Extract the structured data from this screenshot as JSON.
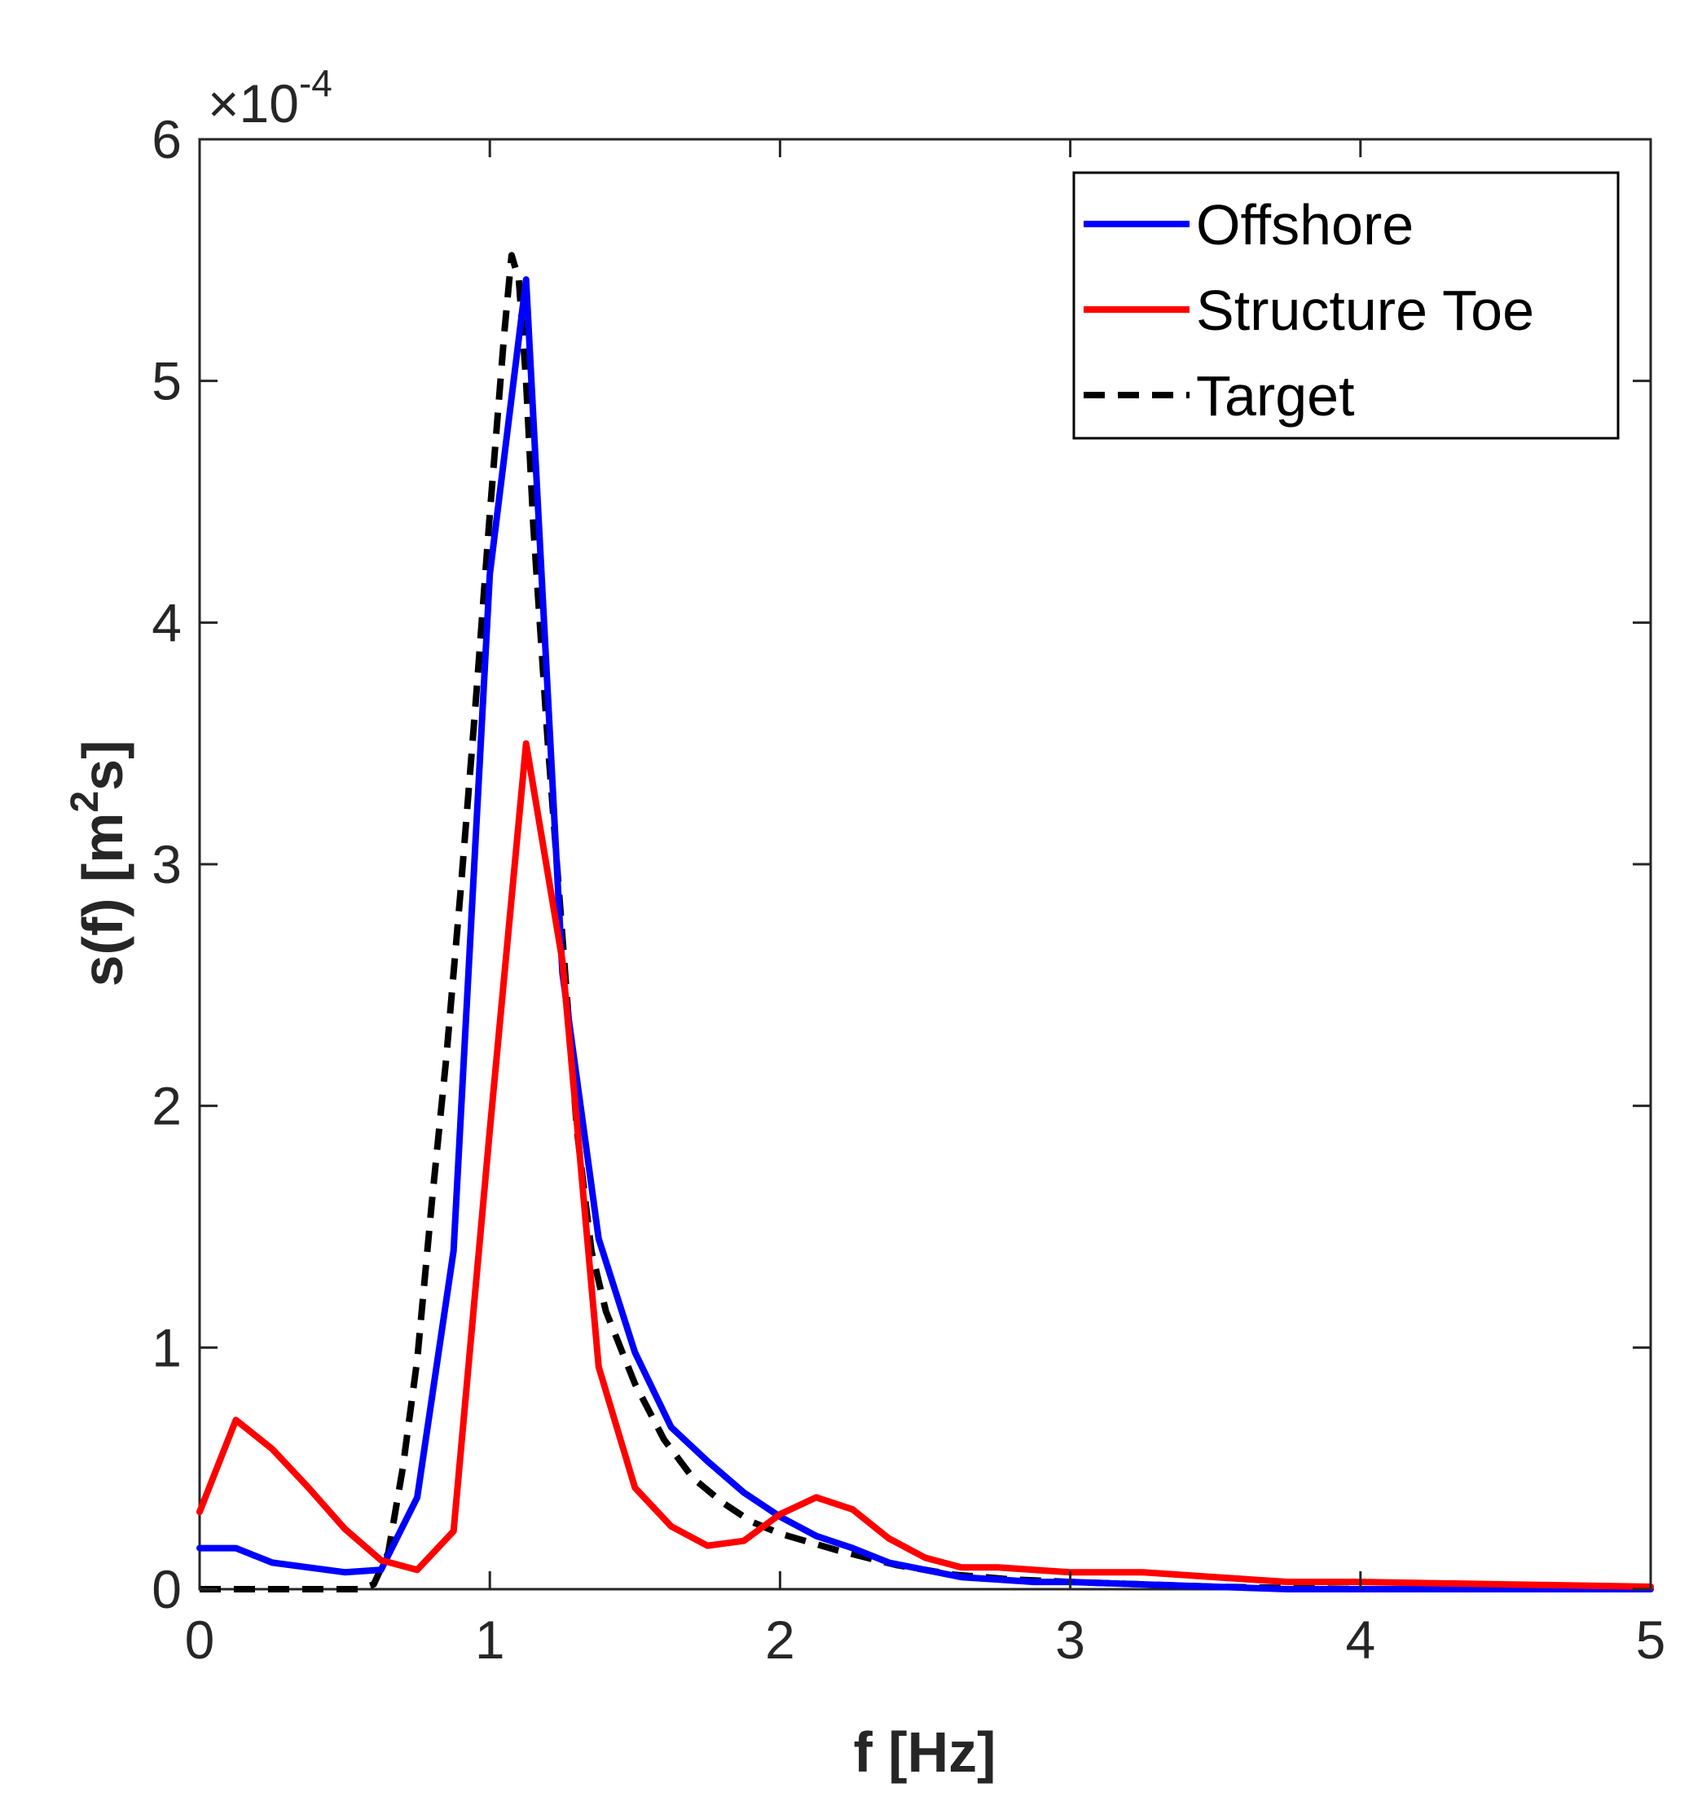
{
  "chart_data": {
    "type": "line",
    "title": "",
    "xlabel": "f [Hz]",
    "ylabel_main": "s(f) [m",
    "ylabel_sup": "2",
    "ylabel_tail": "s]",
    "xlim": [
      0,
      5
    ],
    "ylim": [
      0,
      6
    ],
    "y_scale_base": "×10",
    "y_scale_exp": "-4",
    "xticks": [
      0,
      1,
      2,
      3,
      4,
      5
    ],
    "yticks": [
      0,
      1,
      2,
      3,
      4,
      5,
      6
    ],
    "grid": false,
    "legend_position": "top-right",
    "series": [
      {
        "name": "Offshore",
        "color": "#0000FF",
        "style": "solid",
        "points": [
          [
            0,
            0.17
          ],
          [
            0.125,
            0.17
          ],
          [
            0.25,
            0.11
          ],
          [
            0.375,
            0.09
          ],
          [
            0.5,
            0.07
          ],
          [
            0.625,
            0.08
          ],
          [
            0.75,
            0.38
          ],
          [
            0.875,
            1.4
          ],
          [
            1.0,
            4.2
          ],
          [
            1.125,
            5.42
          ],
          [
            1.25,
            2.55
          ],
          [
            1.375,
            1.45
          ],
          [
            1.5,
            0.98
          ],
          [
            1.625,
            0.67
          ],
          [
            1.75,
            0.53
          ],
          [
            1.875,
            0.4
          ],
          [
            2.0,
            0.3
          ],
          [
            2.125,
            0.22
          ],
          [
            2.25,
            0.17
          ],
          [
            2.375,
            0.11
          ],
          [
            2.5,
            0.08
          ],
          [
            2.625,
            0.05
          ],
          [
            2.75,
            0.04
          ],
          [
            2.875,
            0.03
          ],
          [
            3.0,
            0.03
          ],
          [
            3.25,
            0.02
          ],
          [
            3.5,
            0.01
          ],
          [
            3.75,
            0.0
          ],
          [
            4.0,
            0.0
          ],
          [
            4.5,
            0.0
          ],
          [
            5.0,
            0.0
          ]
        ]
      },
      {
        "name": "Structure Toe",
        "color": "#FF0000",
        "style": "solid",
        "points": [
          [
            0,
            0.32
          ],
          [
            0.125,
            0.7
          ],
          [
            0.25,
            0.58
          ],
          [
            0.375,
            0.42
          ],
          [
            0.5,
            0.25
          ],
          [
            0.625,
            0.12
          ],
          [
            0.75,
            0.08
          ],
          [
            0.875,
            0.24
          ],
          [
            1.0,
            1.9
          ],
          [
            1.125,
            3.5
          ],
          [
            1.25,
            2.6
          ],
          [
            1.375,
            0.92
          ],
          [
            1.5,
            0.42
          ],
          [
            1.625,
            0.26
          ],
          [
            1.75,
            0.18
          ],
          [
            1.875,
            0.2
          ],
          [
            2.0,
            0.31
          ],
          [
            2.125,
            0.38
          ],
          [
            2.25,
            0.33
          ],
          [
            2.375,
            0.21
          ],
          [
            2.5,
            0.13
          ],
          [
            2.625,
            0.09
          ],
          [
            2.75,
            0.09
          ],
          [
            2.875,
            0.08
          ],
          [
            3.0,
            0.07
          ],
          [
            3.25,
            0.07
          ],
          [
            3.5,
            0.05
          ],
          [
            3.75,
            0.03
          ],
          [
            4.0,
            0.03
          ],
          [
            4.5,
            0.02
          ],
          [
            5.0,
            0.01
          ]
        ]
      },
      {
        "name": "Target",
        "color": "#000000",
        "style": "dashed",
        "points": [
          [
            0,
            0.0
          ],
          [
            0.55,
            0.0
          ],
          [
            0.6,
            0.02
          ],
          [
            0.65,
            0.15
          ],
          [
            0.7,
            0.5
          ],
          [
            0.75,
            0.95
          ],
          [
            0.8,
            1.6
          ],
          [
            0.85,
            2.2
          ],
          [
            0.9,
            2.9
          ],
          [
            0.95,
            3.65
          ],
          [
            1.0,
            4.45
          ],
          [
            1.05,
            5.2
          ],
          [
            1.075,
            5.52
          ],
          [
            1.1,
            5.42
          ],
          [
            1.125,
            5.0
          ],
          [
            1.15,
            4.4
          ],
          [
            1.2,
            3.5
          ],
          [
            1.25,
            2.7
          ],
          [
            1.3,
            1.9
          ],
          [
            1.35,
            1.4
          ],
          [
            1.4,
            1.15
          ],
          [
            1.5,
            0.85
          ],
          [
            1.6,
            0.62
          ],
          [
            1.7,
            0.46
          ],
          [
            1.8,
            0.36
          ],
          [
            1.9,
            0.28
          ],
          [
            2.0,
            0.23
          ],
          [
            2.2,
            0.16
          ],
          [
            2.4,
            0.1
          ],
          [
            2.6,
            0.06
          ],
          [
            2.8,
            0.04
          ],
          [
            3.0,
            0.03
          ],
          [
            3.5,
            0.01
          ],
          [
            4.0,
            0.0
          ],
          [
            5.0,
            0.0
          ]
        ]
      }
    ]
  }
}
